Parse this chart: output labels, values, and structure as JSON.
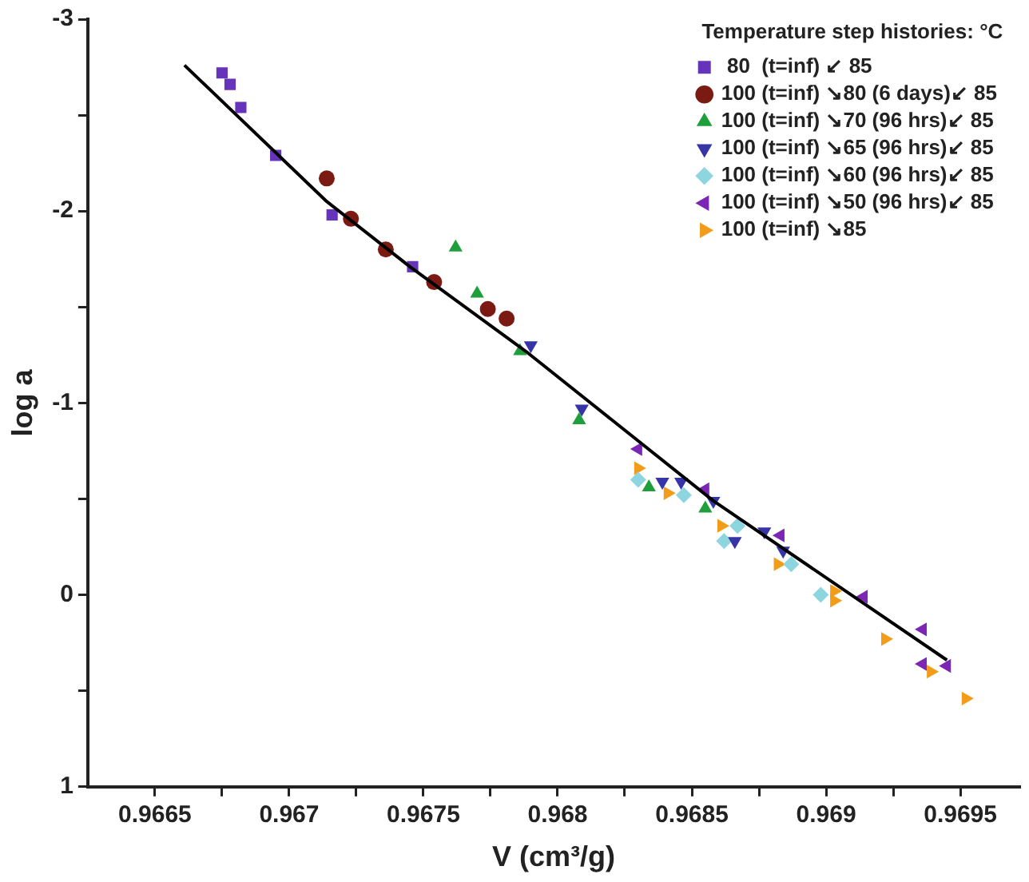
{
  "chart_data": {
    "type": "scatter",
    "xlabel": "V (cm³/g)",
    "ylabel": "log a",
    "legend_title": "Temperature step histories: °C",
    "legend": "top right",
    "xlim": [
      0.96625,
      0.96972
    ],
    "ylim": [
      1,
      -3
    ],
    "xticks": [
      0.9665,
      {
        "value": 0.96675,
        "label": null
      },
      0.967,
      {
        "value": 0.96725,
        "label": null
      },
      0.9675,
      {
        "value": 0.96775,
        "label": null
      },
      0.968,
      {
        "value": 0.96825,
        "label": null
      },
      0.9685,
      {
        "value": 0.96875,
        "label": null
      },
      0.969,
      {
        "value": 0.96925,
        "label": null
      },
      0.9695
    ],
    "yticks": [
      -3,
      {
        "value": -2.5,
        "label": null
      },
      -2,
      {
        "value": -1.5,
        "label": null
      },
      -1,
      {
        "value": -0.5,
        "label": null
      },
      0,
      {
        "value": 0.5,
        "label": null
      },
      1
    ],
    "series": [
      {
        "name": " 80  (t=inf) ↙ 85",
        "color": "#6633bb",
        "marker": "square",
        "x": [
          0.96675,
          0.96678,
          0.96682,
          0.96695,
          0.96716,
          0.96746
        ],
        "values": [
          -2.72,
          -2.66,
          -2.54,
          -2.29,
          -1.98,
          -1.71
        ]
      },
      {
        "name": "100 (t=inf) ↘80 (6 days)↙ 85",
        "color": "#7a1a12",
        "marker": "circle",
        "x": [
          0.96714,
          0.96723,
          0.96736,
          0.96754,
          0.96774,
          0.96781
        ],
        "values": [
          -2.17,
          -1.96,
          -1.8,
          -1.63,
          -1.49,
          -1.44
        ]
      },
      {
        "name": "100 (t=inf) ↘70 (96 hrs)↙ 85",
        "color": "#1f9e3c",
        "marker": "triangle",
        "x": [
          0.96762,
          0.9677,
          0.96786,
          0.96808,
          0.96834,
          0.96855
        ],
        "values": [
          -1.81,
          -1.57,
          -1.27,
          -0.91,
          -0.56,
          -0.45
        ]
      },
      {
        "name": "100 (t=inf) ↘65 (96 hrs)↙ 85",
        "color": "#3535a8",
        "marker": "triangle-down",
        "x": [
          0.9679,
          0.96809,
          0.96839,
          0.96846,
          0.96858,
          0.96866,
          0.96877,
          0.96884
        ],
        "values": [
          -1.3,
          -0.97,
          -0.59,
          -0.59,
          -0.49,
          -0.28,
          -0.33,
          -0.23
        ]
      },
      {
        "name": "100 (t=inf) ↘60 (96 hrs)↙ 85",
        "color": "#8dd6e0",
        "marker": "diamond",
        "x": [
          0.9683,
          0.96847,
          0.96862,
          0.96867,
          0.96887,
          0.96898
        ],
        "values": [
          -0.6,
          -0.52,
          -0.28,
          -0.36,
          -0.16,
          0
        ]
      },
      {
        "name": "100 (t=inf) ↘50 (96 hrs)↙ 85",
        "color": "#7b26b5",
        "marker": "triangle-left",
        "x": [
          0.9683,
          0.96855,
          0.96883,
          0.96914,
          0.96936,
          0.96936,
          0.96945
        ],
        "values": [
          -0.76,
          -0.55,
          -0.31,
          0.01,
          0.18,
          0.36,
          0.37
        ]
      },
      {
        "name": "100 (t=inf) ↘85",
        "color": "#f29c1a",
        "marker": "triangle-right",
        "x": [
          0.9683,
          0.96841,
          0.96861,
          0.96882,
          0.96903,
          0.96903,
          0.96922,
          0.96939,
          0.96952
        ],
        "values": [
          -0.66,
          -0.53,
          -0.36,
          -0.16,
          -0.02,
          0.03,
          0.23,
          0.4,
          0.54
        ]
      },
      {
        "type": "line",
        "color": "#000000",
        "marker": "none",
        "x": [
          0.96661,
          0.96714,
          0.96745,
          0.96789,
          0.96858,
          0.96945
        ],
        "values": [
          -2.76,
          -2.05,
          -1.71,
          -1.26,
          -0.49,
          0.34
        ]
      }
    ]
  }
}
